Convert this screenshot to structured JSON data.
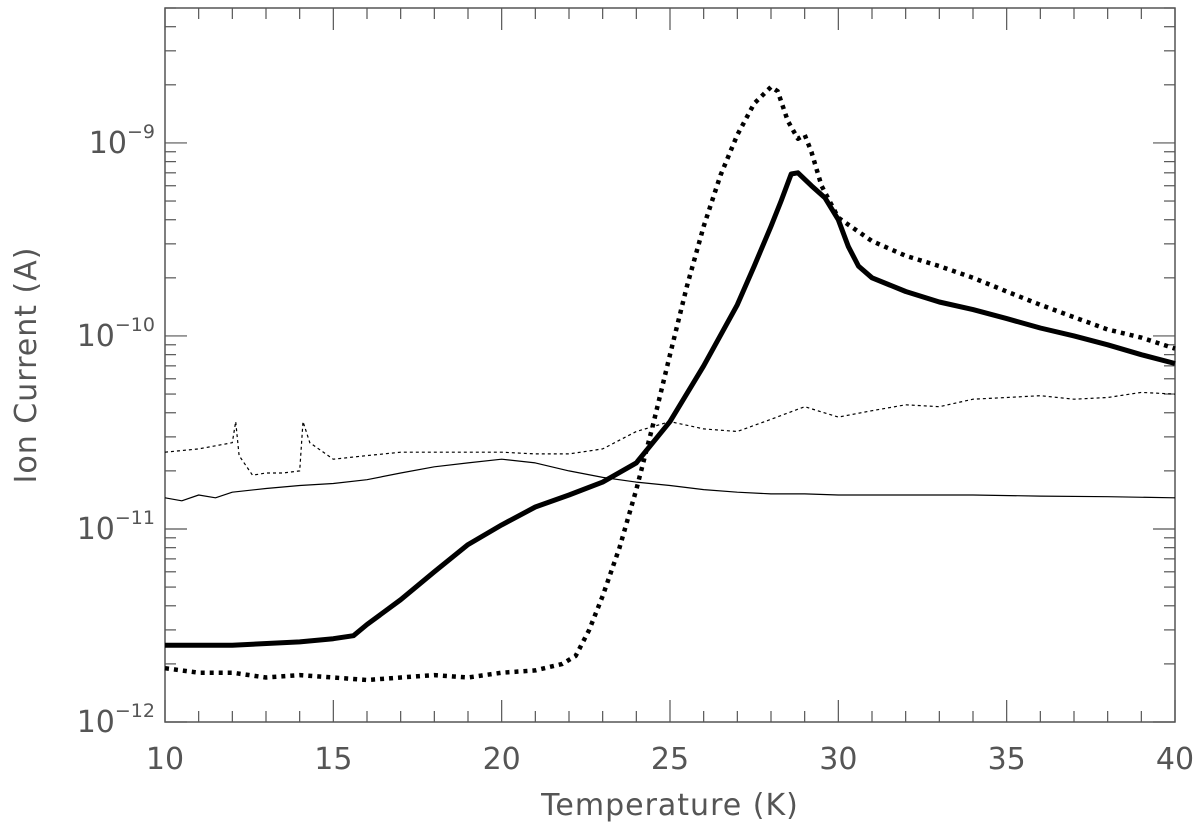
{
  "chart_data": {
    "type": "line",
    "title": "",
    "xlabel": "Temperature (K)",
    "ylabel": "Ion Current (A)",
    "xlim": [
      10,
      40
    ],
    "ylim": [
      1e-12,
      5e-09
    ],
    "yscale": "log",
    "grid": false,
    "legend": "none",
    "x_ticks": [
      10,
      15,
      20,
      25,
      30,
      35,
      40
    ],
    "x_tick_labels": [
      "10",
      "15",
      "20",
      "25",
      "30",
      "35",
      "40"
    ],
    "y_ticks": [
      1e-12,
      1e-11,
      1e-10,
      1e-09
    ],
    "y_tick_labels": [
      {
        "base": "10",
        "exp": "−12"
      },
      {
        "base": "10",
        "exp": "−11"
      },
      {
        "base": "10",
        "exp": "−10"
      },
      {
        "base": "10",
        "exp": "−9"
      }
    ],
    "series": [
      {
        "style": "thick-solid",
        "color": "#000000",
        "x": [
          10,
          12,
          14,
          15,
          15.6,
          16,
          17,
          18,
          19,
          20,
          21,
          22,
          23,
          24,
          25,
          26,
          27,
          27.5,
          28,
          28.3,
          28.6,
          28.8,
          29.2,
          29.6,
          30,
          30.3,
          30.6,
          31,
          32,
          33,
          34,
          35,
          36,
          37,
          38,
          39,
          40
        ],
        "y": [
          2.5e-12,
          2.5e-12,
          2.6e-12,
          2.7e-12,
          2.8e-12,
          3.2e-12,
          4.3e-12,
          6e-12,
          8.3e-12,
          1.05e-11,
          1.3e-11,
          1.5e-11,
          1.75e-11,
          2.2e-11,
          3.6e-11,
          7e-11,
          1.45e-10,
          2.3e-10,
          3.7e-10,
          5e-10,
          6.9e-10,
          7e-10,
          6e-10,
          5.2e-10,
          4e-10,
          2.9e-10,
          2.3e-10,
          2e-10,
          1.7e-10,
          1.5e-10,
          1.37e-10,
          1.23e-10,
          1.1e-10,
          1e-10,
          9e-11,
          8e-11,
          7.2e-11
        ]
      },
      {
        "style": "thick-dotted",
        "color": "#000000",
        "x": [
          10,
          11,
          12,
          13,
          14,
          15,
          16,
          17,
          18,
          19,
          20,
          21,
          21.8,
          22.2,
          22.6,
          23,
          23.5,
          24,
          24.5,
          25,
          25.5,
          26,
          26.5,
          27,
          27.5,
          28,
          28.2,
          28.5,
          28.8,
          29,
          29.2,
          29.5,
          30,
          31,
          32,
          33,
          34,
          35,
          36,
          37,
          38,
          39,
          40
        ],
        "y": [
          1.9e-12,
          1.8e-12,
          1.8e-12,
          1.7e-12,
          1.75e-12,
          1.7e-12,
          1.65e-12,
          1.7e-12,
          1.75e-12,
          1.7e-12,
          1.8e-12,
          1.85e-12,
          2e-12,
          2.2e-12,
          3e-12,
          4.5e-12,
          8e-12,
          1.6e-11,
          3.5e-11,
          8e-11,
          1.8e-10,
          3.7e-10,
          6.8e-10,
          1.1e-09,
          1.6e-09,
          1.95e-09,
          1.85e-09,
          1.3e-09,
          1.05e-09,
          1.1e-09,
          9e-10,
          6e-10,
          4.1e-10,
          3.1e-10,
          2.6e-10,
          2.3e-10,
          2e-10,
          1.7e-10,
          1.45e-10,
          1.25e-10,
          1.08e-10,
          9.8e-11,
          8.6e-11
        ]
      },
      {
        "style": "thin-solid",
        "color": "#000000",
        "x": [
          10,
          10.5,
          11,
          11.5,
          12,
          13,
          14,
          15,
          16,
          17,
          18,
          19,
          20,
          21,
          22,
          23,
          24,
          25,
          26,
          27,
          28,
          29,
          30,
          32,
          34,
          36,
          38,
          40
        ],
        "y": [
          1.45e-11,
          1.4e-11,
          1.5e-11,
          1.45e-11,
          1.55e-11,
          1.62e-11,
          1.68e-11,
          1.72e-11,
          1.8e-11,
          1.95e-11,
          2.1e-11,
          2.2e-11,
          2.3e-11,
          2.2e-11,
          2e-11,
          1.85e-11,
          1.75e-11,
          1.68e-11,
          1.6e-11,
          1.55e-11,
          1.52e-11,
          1.52e-11,
          1.5e-11,
          1.5e-11,
          1.5e-11,
          1.48e-11,
          1.47e-11,
          1.45e-11
        ]
      },
      {
        "style": "thin-dotted",
        "color": "#000000",
        "x": [
          10,
          11,
          12,
          12.1,
          12.2,
          12.6,
          13,
          13.5,
          14,
          14.1,
          14.3,
          15,
          16,
          17,
          18,
          19,
          20,
          21,
          22,
          23,
          24,
          25,
          26,
          27,
          28,
          29,
          30,
          31,
          32,
          33,
          34,
          35,
          36,
          37,
          38,
          39,
          40
        ],
        "y": [
          2.5e-11,
          2.6e-11,
          2.8e-11,
          3.6e-11,
          2.4e-11,
          1.9e-11,
          1.95e-11,
          1.95e-11,
          2e-11,
          3.6e-11,
          2.8e-11,
          2.3e-11,
          2.4e-11,
          2.5e-11,
          2.5e-11,
          2.5e-11,
          2.5e-11,
          2.45e-11,
          2.45e-11,
          2.6e-11,
          3.2e-11,
          3.6e-11,
          3.3e-11,
          3.2e-11,
          3.7e-11,
          4.3e-11,
          3.8e-11,
          4.1e-11,
          4.4e-11,
          4.3e-11,
          4.7e-11,
          4.8e-11,
          4.9e-11,
          4.7e-11,
          4.8e-11,
          5.1e-11,
          5e-11
        ]
      }
    ]
  }
}
